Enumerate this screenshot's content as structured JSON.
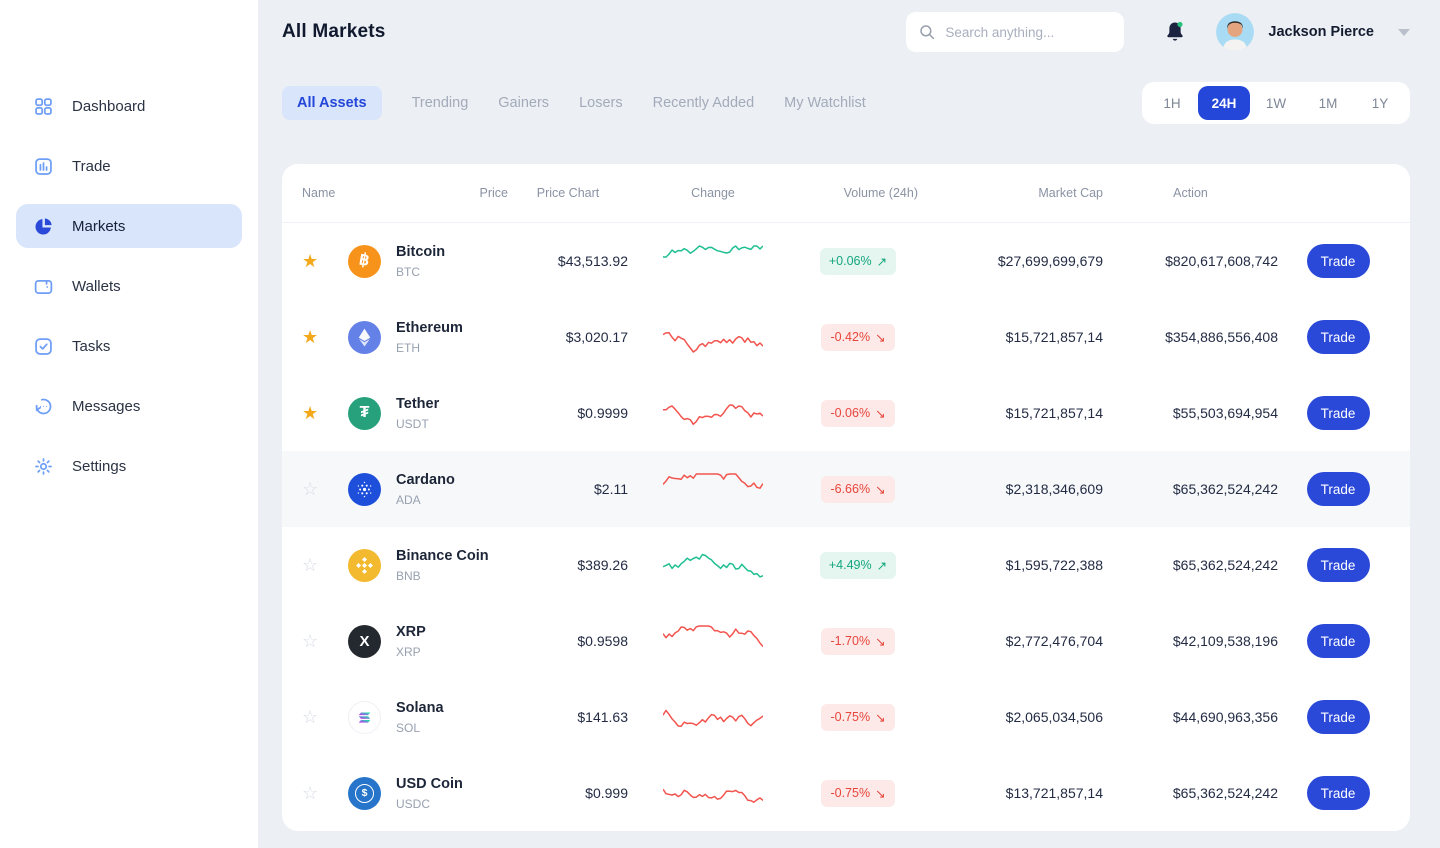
{
  "colors": {
    "accent_blue": "#2B49D8",
    "sidebar_icon": "#6F9EF6",
    "active_item_bg": "#D8E5FB",
    "spark_up": "#1FBF92",
    "spark_down": "#F2544E",
    "badge_up_bg": "#E4F6EF",
    "badge_up_text": "#14A57E",
    "badge_down_bg": "#FCE9E8",
    "badge_down_text": "#E8453C",
    "star_filled": "#F2A819",
    "star_empty": "#D6DBE3"
  },
  "icons": {
    "up_arrow": "↗",
    "down_arrow": "↘",
    "star_filled": "★",
    "star_empty": "☆"
  },
  "sidebar": {
    "items": [
      {
        "label": "Dashboard",
        "icon": "grid",
        "active": false
      },
      {
        "label": "Trade",
        "icon": "trade-chart",
        "active": false
      },
      {
        "label": "Markets",
        "icon": "pie-chart",
        "active": true
      },
      {
        "label": "Wallets",
        "icon": "wallet",
        "active": false
      },
      {
        "label": "Tasks",
        "icon": "tasks-check",
        "active": false
      },
      {
        "label": "Messages",
        "icon": "messages-bubble",
        "active": false
      },
      {
        "label": "Settings",
        "icon": "settings-gear",
        "active": false
      }
    ]
  },
  "header": {
    "title": "All Markets",
    "search_placeholder": "Search anything...",
    "user_name": "Jackson Pierce",
    "notification_dot": true
  },
  "tabs": [
    {
      "label": "All Assets",
      "active": true
    },
    {
      "label": "Trending",
      "active": false
    },
    {
      "label": "Gainers",
      "active": false
    },
    {
      "label": "Losers",
      "active": false
    },
    {
      "label": "Recently Added",
      "active": false
    },
    {
      "label": "My Watchlist",
      "active": false
    }
  ],
  "timeframes": [
    {
      "label": "1H",
      "active": false
    },
    {
      "label": "24H",
      "active": true
    },
    {
      "label": "1W",
      "active": false
    },
    {
      "label": "1M",
      "active": false
    },
    {
      "label": "1Y",
      "active": false
    }
  ],
  "table": {
    "columns": [
      "Name",
      "Price",
      "Price Chart",
      "Change",
      "Volume (24h)",
      "Market Cap",
      "Action"
    ],
    "trade_label": "Trade",
    "rows": [
      {
        "name": "Bitcoin",
        "symbol": "BTC",
        "icon": "bitcoin",
        "icon_bg": "#F7931A",
        "price": "$43,513.92",
        "change": "+0.06%",
        "trend": "up",
        "volume": "$27,699,699,679",
        "market_cap": "$820,617,608,742",
        "starred": true,
        "highlighted": false
      },
      {
        "name": "Ethereum",
        "symbol": "ETH",
        "icon": "ethereum",
        "icon_bg": "#6481E7",
        "price": "$3,020.17",
        "change": "-0.42%",
        "trend": "down",
        "volume": "$15,721,857,14",
        "market_cap": "$354,886,556,408",
        "starred": true,
        "highlighted": false
      },
      {
        "name": "Tether",
        "symbol": "USDT",
        "icon": "tether",
        "icon_bg": "#26A17B",
        "price": "$0.9999",
        "change": "-0.06%",
        "trend": "down",
        "volume": "$15,721,857,14",
        "market_cap": "$55,503,694,954",
        "starred": true,
        "highlighted": false
      },
      {
        "name": "Cardano",
        "symbol": "ADA",
        "icon": "cardano",
        "icon_bg": "#1D4FDB",
        "price": "$2.11",
        "change": "-6.66%",
        "trend": "down",
        "volume": "$2,318,346,609",
        "market_cap": "$65,362,524,242",
        "starred": false,
        "highlighted": true
      },
      {
        "name": "Binance Coin",
        "symbol": "BNB",
        "icon": "binance",
        "icon_bg": "#F3BA2F",
        "price": "$389.26",
        "change": "+4.49%",
        "trend": "up",
        "volume": "$1,595,722,388",
        "market_cap": "$65,362,524,242",
        "starred": false,
        "highlighted": false
      },
      {
        "name": "XRP",
        "symbol": "XRP",
        "icon": "xrp",
        "icon_bg": "#23292F",
        "price": "$0.9598",
        "change": "-1.70%",
        "trend": "down",
        "volume": "$2,772,476,704",
        "market_cap": "$42,109,538,196",
        "starred": false,
        "highlighted": false
      },
      {
        "name": "Solana",
        "symbol": "SOL",
        "icon": "solana",
        "icon_bg": "#FFFFFF",
        "price": "$141.63",
        "change": "-0.75%",
        "trend": "down",
        "volume": "$2,065,034,506",
        "market_cap": "$44,690,963,356",
        "starred": false,
        "highlighted": false
      },
      {
        "name": "USD Coin",
        "symbol": "USDC",
        "icon": "usd-coin",
        "icon_bg": "#2775CA",
        "price": "$0.999",
        "change": "-0.75%",
        "trend": "down",
        "volume": "$13,721,857,14",
        "market_cap": "$65,362,524,242",
        "starred": false,
        "highlighted": false
      }
    ]
  }
}
